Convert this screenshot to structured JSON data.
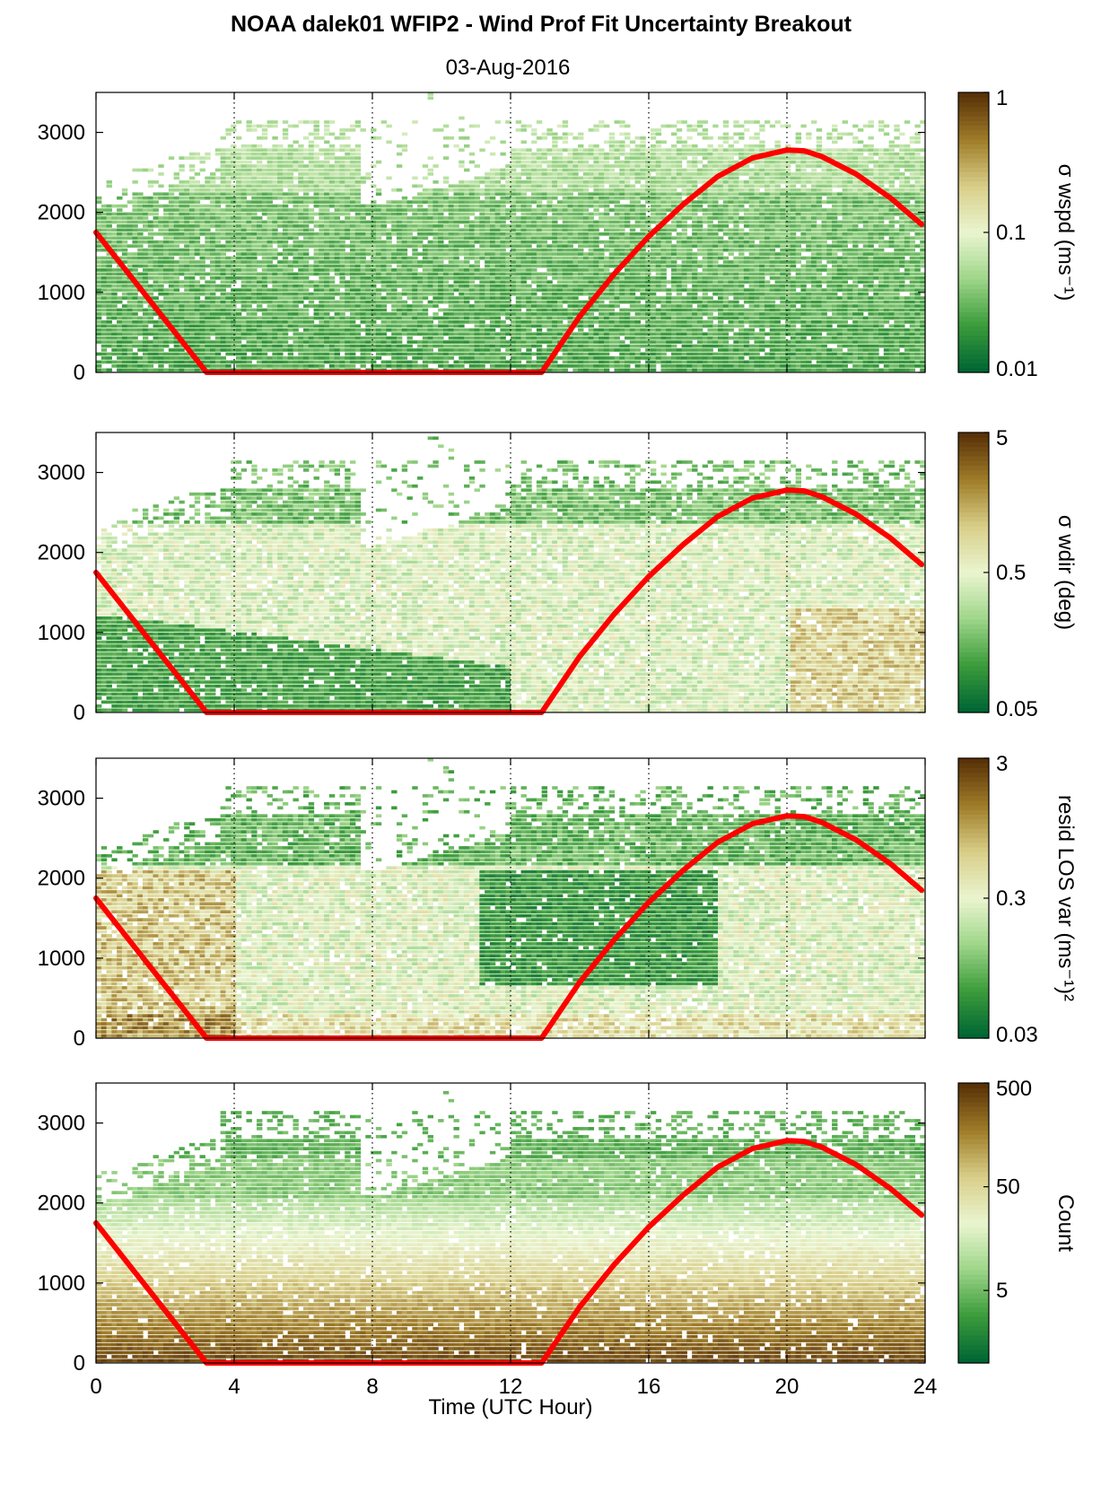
{
  "chart_data": {
    "type": "heatmap",
    "title": "NOAA dalek01 WFIP2 - Wind Prof Fit Uncertainty Breakout",
    "subtitle": "03-Aug-2016",
    "xlabel": "Time (UTC Hour)",
    "xlim": [
      0,
      24
    ],
    "xticks": [
      0,
      4,
      8,
      12,
      16,
      20,
      24
    ],
    "xtick_labels": [
      "0",
      "4",
      "8",
      "12",
      "16",
      "20",
      "24"
    ],
    "ylim": [
      0,
      3500
    ],
    "yticks": [
      0,
      1000,
      2000,
      3000
    ],
    "ytick_labels": [
      "0",
      "1000",
      "2000",
      "3000"
    ],
    "grid": "vertical dotted lines at x ticks",
    "colormap": [
      "#006633",
      "#3c9c3c",
      "#9fd68a",
      "#eaf5d0",
      "#d9cf8a",
      "#a07e2a",
      "#5a3208"
    ],
    "overlay_line": {
      "color": "#ff0000",
      "points": [
        [
          0,
          1750
        ],
        [
          3.2,
          0
        ],
        [
          12.9,
          0
        ],
        [
          14,
          700
        ],
        [
          15,
          1230
        ],
        [
          16,
          1700
        ],
        [
          17,
          2100
        ],
        [
          18,
          2450
        ],
        [
          19,
          2680
        ],
        [
          20,
          2780
        ],
        [
          20.5,
          2770
        ],
        [
          21,
          2700
        ],
        [
          22,
          2480
        ],
        [
          23,
          2180
        ],
        [
          23.9,
          1850
        ]
      ]
    },
    "panels": [
      {
        "colorbar_label": "σ wspd (ms⁻¹)",
        "scale": "log",
        "clim": [
          0.01,
          1
        ],
        "colorbar_ticks": [
          0.01,
          0.1,
          1
        ],
        "colorbar_tick_labels": [
          "0.01",
          "0.1",
          "1"
        ]
      },
      {
        "colorbar_label": "σ wdir (deg)",
        "scale": "log",
        "clim": [
          0.05,
          5
        ],
        "colorbar_ticks": [
          0.05,
          0.5,
          5
        ],
        "colorbar_tick_labels": [
          "0.05",
          "0.5",
          "5"
        ]
      },
      {
        "colorbar_label": "resid LOS var (ms⁻¹)²",
        "scale": "log",
        "clim": [
          0.03,
          3
        ],
        "colorbar_ticks": [
          0.03,
          0.3,
          3
        ],
        "colorbar_tick_labels": [
          "0.03",
          "0.3",
          "3"
        ]
      },
      {
        "colorbar_label": "Count",
        "scale": "log",
        "clim": [
          1,
          500
        ],
        "colorbar_ticks": [
          5,
          50,
          500
        ],
        "colorbar_tick_labels": [
          "5",
          "50",
          "500"
        ]
      }
    ]
  }
}
